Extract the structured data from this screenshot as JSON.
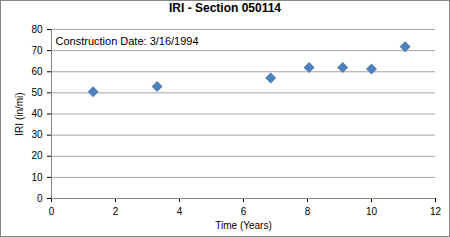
{
  "chart_data": {
    "type": "scatter",
    "title": "IRI - Section 050114",
    "annotation": "Construction Date: 3/16/1994",
    "x_label": "Time (Years)",
    "y_label": "IRI (in/mi)",
    "x": [
      1.3,
      3.3,
      6.85,
      8.05,
      9.1,
      10.0,
      11.05
    ],
    "values": [
      50.5,
      53,
      57,
      62,
      62,
      61.3,
      71.8
    ],
    "color": "#4f81bd",
    "marker": "diamond",
    "xlim": [
      0,
      12
    ],
    "xticks": [
      0,
      2,
      4,
      6,
      8,
      10,
      12
    ],
    "ylim": [
      0,
      80
    ],
    "yticks": [
      0,
      10,
      20,
      30,
      40,
      50,
      60,
      70,
      80
    ],
    "grid": true
  }
}
